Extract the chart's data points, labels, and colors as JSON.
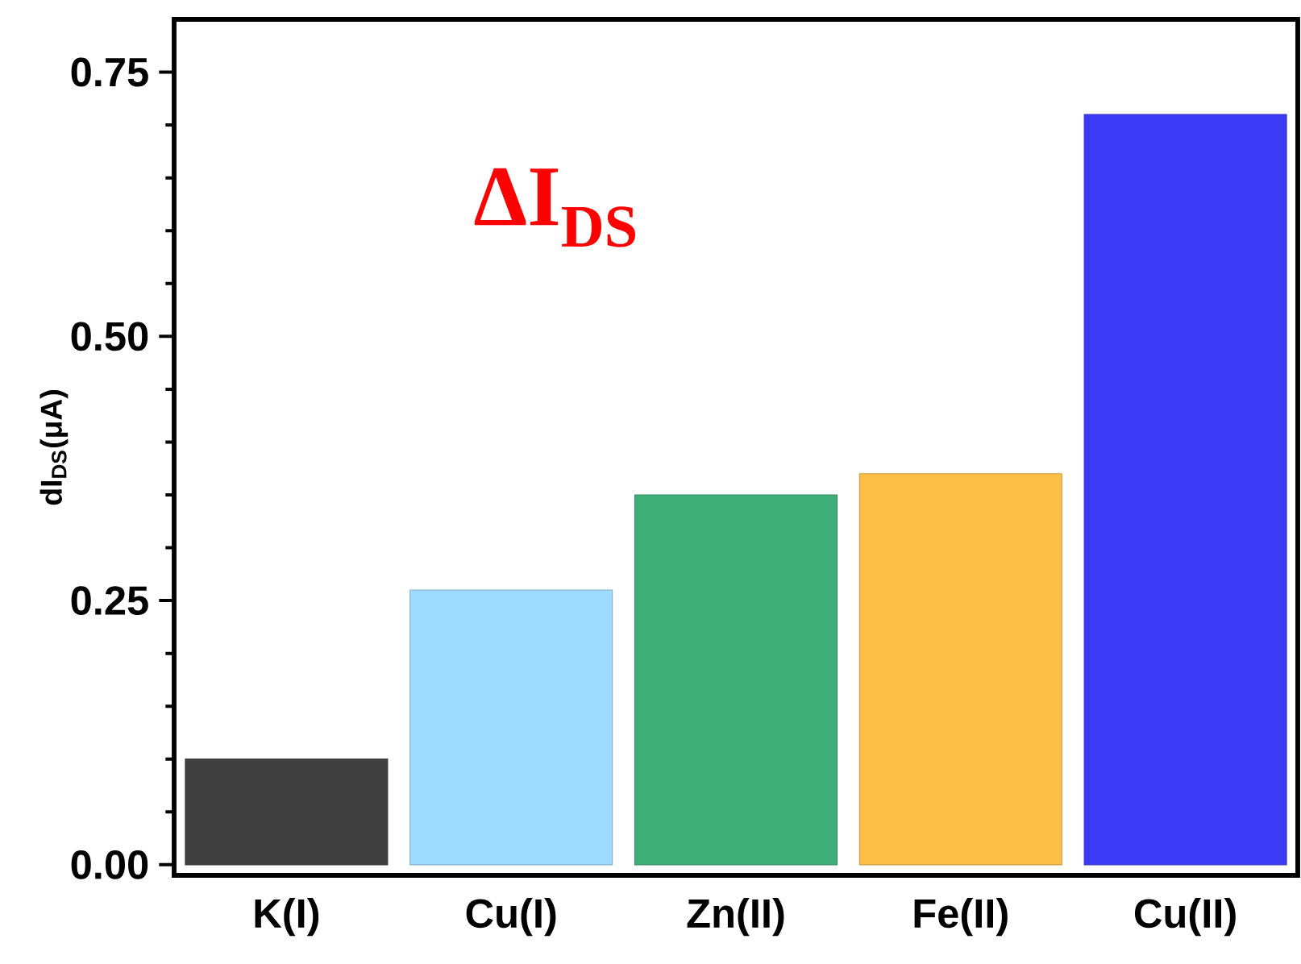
{
  "chart_data": {
    "type": "bar",
    "ylabel": "dI$_{DS}$(μA)",
    "annotations": [
      "ΔI$_{DS}$"
    ],
    "categories": [
      "K(I)",
      "Cu(I)",
      "Zn(II)",
      "Fe(II)",
      "Cu(II)"
    ],
    "values": [
      0.1,
      0.26,
      0.35,
      0.37,
      0.71
    ],
    "colors": [
      "#3f3f3f",
      "#9ddcff",
      "#3faf78",
      "#ffbe45",
      "#3b3bf5"
    ],
    "ylim": [
      -0.01,
      0.8
    ],
    "yticks": [
      {
        "value": 0,
        "label": "0.00"
      },
      {
        "value": 0.25,
        "label": "0.25"
      },
      {
        "value": 0.5,
        "label": "0.50"
      },
      {
        "value": 0.75,
        "label": "0.75"
      }
    ],
    "grid": false
  }
}
